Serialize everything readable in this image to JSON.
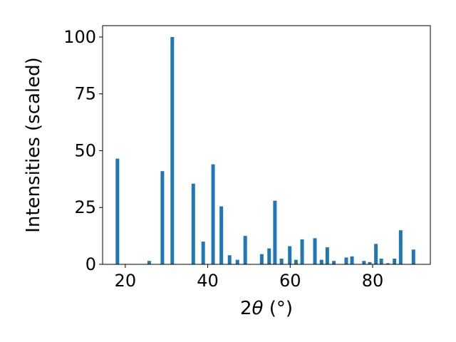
{
  "chart_data": {
    "type": "bar",
    "xlabel_prefix": "2",
    "xlabel_symbol": "θ",
    "xlabel_suffix": " (°)",
    "ylabel": "Intensities (scaled)",
    "xlim": [
      14.5,
      94.0
    ],
    "ylim": [
      0,
      105
    ],
    "xticks": [
      20,
      40,
      60,
      80
    ],
    "yticks": [
      0,
      25,
      50,
      75,
      100
    ],
    "grid": false,
    "bar_color": "#1f77b4",
    "x": [
      18.1,
      25.8,
      29.0,
      31.4,
      36.5,
      38.9,
      41.3,
      43.3,
      45.3,
      47.2,
      49.1,
      53.1,
      54.9,
      56.3,
      57.9,
      59.9,
      61.4,
      62.9,
      66.0,
      67.6,
      69.0,
      70.6,
      73.6,
      75.0,
      77.9,
      79.3,
      80.8,
      82.1,
      83.7,
      85.3,
      86.8,
      89.9
    ],
    "values": [
      46.5,
      1.5,
      41,
      100,
      35.5,
      10,
      44,
      25.5,
      4,
      2,
      12.5,
      4.5,
      7,
      28,
      2.5,
      8,
      2,
      11,
      11.5,
      2,
      7.5,
      1.5,
      3,
      3.5,
      1.5,
      1,
      9,
      2.5,
      0.5,
      2.5,
      15,
      6.5
    ]
  }
}
